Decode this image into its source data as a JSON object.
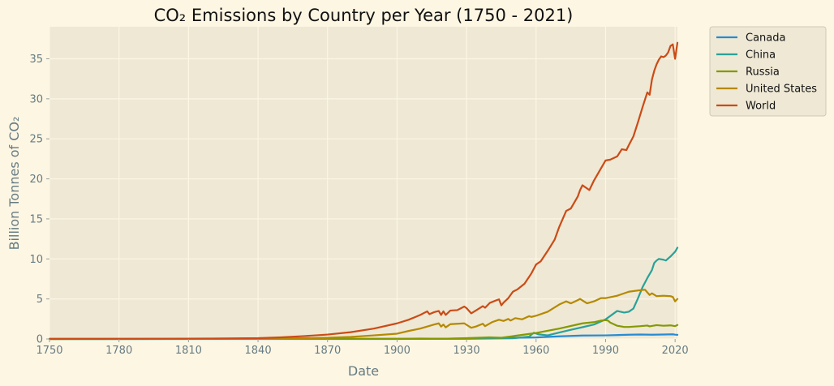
{
  "chart_data": {
    "type": "line",
    "title": "CO₂ Emissions by Country per Year (1750 - 2021)",
    "xlabel": "Date",
    "ylabel": "Billion Tonnes of CO₂",
    "xlim": [
      1750,
      2021
    ],
    "ylim": [
      0,
      39
    ],
    "x_ticks": [
      1750,
      1780,
      1810,
      1840,
      1870,
      1900,
      1930,
      1960,
      1990,
      2020
    ],
    "y_ticks": [
      0,
      5,
      10,
      15,
      20,
      25,
      30,
      35
    ],
    "grid": true,
    "legend_position": "outside-top-right",
    "colors": {
      "background": "#fdf6e3",
      "plot_background": "#eee8d5",
      "grid": "#fdf6e3"
    },
    "series": [
      {
        "name": "Canada",
        "color": "#268bd2",
        "points": [
          [
            1750,
            0
          ],
          [
            1900,
            0.01
          ],
          [
            1930,
            0.05
          ],
          [
            1950,
            0.15
          ],
          [
            1960,
            0.19
          ],
          [
            1970,
            0.33
          ],
          [
            1980,
            0.43
          ],
          [
            1990,
            0.45
          ],
          [
            2000,
            0.53
          ],
          [
            2005,
            0.56
          ],
          [
            2010,
            0.53
          ],
          [
            2015,
            0.56
          ],
          [
            2019,
            0.58
          ],
          [
            2020,
            0.54
          ],
          [
            2021,
            0.52
          ]
        ]
      },
      {
        "name": "China",
        "color": "#2aa198",
        "points": [
          [
            1750,
            0
          ],
          [
            1900,
            0
          ],
          [
            1930,
            0.02
          ],
          [
            1950,
            0.08
          ],
          [
            1957,
            0.3
          ],
          [
            1959,
            0.78
          ],
          [
            1961,
            0.58
          ],
          [
            1965,
            0.45
          ],
          [
            1970,
            0.8
          ],
          [
            1975,
            1.15
          ],
          [
            1980,
            1.47
          ],
          [
            1985,
            1.8
          ],
          [
            1990,
            2.45
          ],
          [
            1995,
            3.5
          ],
          [
            1998,
            3.3
          ],
          [
            2000,
            3.4
          ],
          [
            2002,
            3.8
          ],
          [
            2004,
            5.1
          ],
          [
            2006,
            6.5
          ],
          [
            2008,
            7.6
          ],
          [
            2010,
            8.6
          ],
          [
            2011,
            9.5
          ],
          [
            2012,
            9.8
          ],
          [
            2013,
            10.0
          ],
          [
            2015,
            9.9
          ],
          [
            2016,
            9.8
          ],
          [
            2018,
            10.3
          ],
          [
            2020,
            10.9
          ],
          [
            2021,
            11.4
          ]
        ]
      },
      {
        "name": "Russia",
        "color": "#859900",
        "points": [
          [
            1750,
            0
          ],
          [
            1900,
            0.02
          ],
          [
            1910,
            0.05
          ],
          [
            1920,
            0.03
          ],
          [
            1930,
            0.1
          ],
          [
            1940,
            0.2
          ],
          [
            1945,
            0.15
          ],
          [
            1950,
            0.35
          ],
          [
            1960,
            0.75
          ],
          [
            1970,
            1.3
          ],
          [
            1980,
            1.95
          ],
          [
            1985,
            2.1
          ],
          [
            1988,
            2.3
          ],
          [
            1990,
            2.35
          ],
          [
            1991,
            2.3
          ],
          [
            1992,
            2.05
          ],
          [
            1995,
            1.65
          ],
          [
            1998,
            1.5
          ],
          [
            2000,
            1.5
          ],
          [
            2005,
            1.6
          ],
          [
            2008,
            1.68
          ],
          [
            2009,
            1.58
          ],
          [
            2012,
            1.73
          ],
          [
            2015,
            1.65
          ],
          [
            2018,
            1.7
          ],
          [
            2020,
            1.6
          ],
          [
            2021,
            1.75
          ]
        ]
      },
      {
        "name": "United States",
        "color": "#b58900",
        "points": [
          [
            1750,
            0
          ],
          [
            1800,
            0.01
          ],
          [
            1830,
            0.02
          ],
          [
            1850,
            0.05
          ],
          [
            1870,
            0.15
          ],
          [
            1880,
            0.25
          ],
          [
            1890,
            0.45
          ],
          [
            1900,
            0.66
          ],
          [
            1905,
            1.0
          ],
          [
            1910,
            1.3
          ],
          [
            1913,
            1.55
          ],
          [
            1916,
            1.8
          ],
          [
            1918,
            1.95
          ],
          [
            1919,
            1.55
          ],
          [
            1920,
            1.8
          ],
          [
            1921,
            1.45
          ],
          [
            1923,
            1.85
          ],
          [
            1926,
            1.9
          ],
          [
            1929,
            1.95
          ],
          [
            1932,
            1.4
          ],
          [
            1934,
            1.55
          ],
          [
            1937,
            1.9
          ],
          [
            1938,
            1.6
          ],
          [
            1941,
            2.1
          ],
          [
            1944,
            2.4
          ],
          [
            1946,
            2.25
          ],
          [
            1948,
            2.5
          ],
          [
            1949,
            2.3
          ],
          [
            1951,
            2.6
          ],
          [
            1954,
            2.45
          ],
          [
            1957,
            2.85
          ],
          [
            1958,
            2.75
          ],
          [
            1960,
            2.9
          ],
          [
            1965,
            3.4
          ],
          [
            1970,
            4.3
          ],
          [
            1973,
            4.7
          ],
          [
            1975,
            4.45
          ],
          [
            1978,
            4.85
          ],
          [
            1979,
            5.0
          ],
          [
            1982,
            4.45
          ],
          [
            1985,
            4.7
          ],
          [
            1988,
            5.1
          ],
          [
            1990,
            5.1
          ],
          [
            1995,
            5.4
          ],
          [
            2000,
            5.9
          ],
          [
            2005,
            6.1
          ],
          [
            2007,
            6.15
          ],
          [
            2009,
            5.5
          ],
          [
            2010,
            5.7
          ],
          [
            2012,
            5.35
          ],
          [
            2015,
            5.4
          ],
          [
            2018,
            5.35
          ],
          [
            2019,
            5.25
          ],
          [
            2020,
            4.7
          ],
          [
            2021,
            5.0
          ]
        ]
      },
      {
        "name": "World",
        "color": "#cb4b16",
        "points": [
          [
            1750,
            0.01
          ],
          [
            1780,
            0.02
          ],
          [
            1800,
            0.03
          ],
          [
            1820,
            0.05
          ],
          [
            1840,
            0.1
          ],
          [
            1850,
            0.2
          ],
          [
            1860,
            0.36
          ],
          [
            1870,
            0.55
          ],
          [
            1880,
            0.85
          ],
          [
            1890,
            1.3
          ],
          [
            1900,
            1.95
          ],
          [
            1905,
            2.4
          ],
          [
            1910,
            3.0
          ],
          [
            1913,
            3.45
          ],
          [
            1914,
            3.1
          ],
          [
            1916,
            3.35
          ],
          [
            1918,
            3.5
          ],
          [
            1919,
            3.0
          ],
          [
            1920,
            3.45
          ],
          [
            1921,
            3.0
          ],
          [
            1923,
            3.55
          ],
          [
            1926,
            3.6
          ],
          [
            1929,
            4.05
          ],
          [
            1930,
            3.85
          ],
          [
            1932,
            3.2
          ],
          [
            1934,
            3.55
          ],
          [
            1937,
            4.1
          ],
          [
            1938,
            3.9
          ],
          [
            1940,
            4.5
          ],
          [
            1943,
            4.85
          ],
          [
            1944,
            4.95
          ],
          [
            1945,
            4.2
          ],
          [
            1946,
            4.55
          ],
          [
            1948,
            5.1
          ],
          [
            1950,
            5.9
          ],
          [
            1952,
            6.2
          ],
          [
            1955,
            6.9
          ],
          [
            1958,
            8.2
          ],
          [
            1960,
            9.3
          ],
          [
            1962,
            9.7
          ],
          [
            1965,
            11.0
          ],
          [
            1968,
            12.4
          ],
          [
            1970,
            14.0
          ],
          [
            1973,
            16.0
          ],
          [
            1975,
            16.3
          ],
          [
            1978,
            17.8
          ],
          [
            1979,
            18.6
          ],
          [
            1980,
            19.2
          ],
          [
            1983,
            18.6
          ],
          [
            1985,
            19.8
          ],
          [
            1988,
            21.3
          ],
          [
            1990,
            22.3
          ],
          [
            1992,
            22.4
          ],
          [
            1995,
            22.8
          ],
          [
            1997,
            23.7
          ],
          [
            1999,
            23.6
          ],
          [
            2000,
            24.2
          ],
          [
            2002,
            25.3
          ],
          [
            2004,
            27.1
          ],
          [
            2006,
            29.0
          ],
          [
            2008,
            30.8
          ],
          [
            2009,
            30.5
          ],
          [
            2010,
            32.4
          ],
          [
            2011,
            33.5
          ],
          [
            2012,
            34.3
          ],
          [
            2013,
            34.9
          ],
          [
            2014,
            35.3
          ],
          [
            2015,
            35.2
          ],
          [
            2016,
            35.4
          ],
          [
            2017,
            35.8
          ],
          [
            2018,
            36.6
          ],
          [
            2019,
            36.8
          ],
          [
            2020,
            35.0
          ],
          [
            2021,
            37.0
          ]
        ]
      }
    ]
  }
}
